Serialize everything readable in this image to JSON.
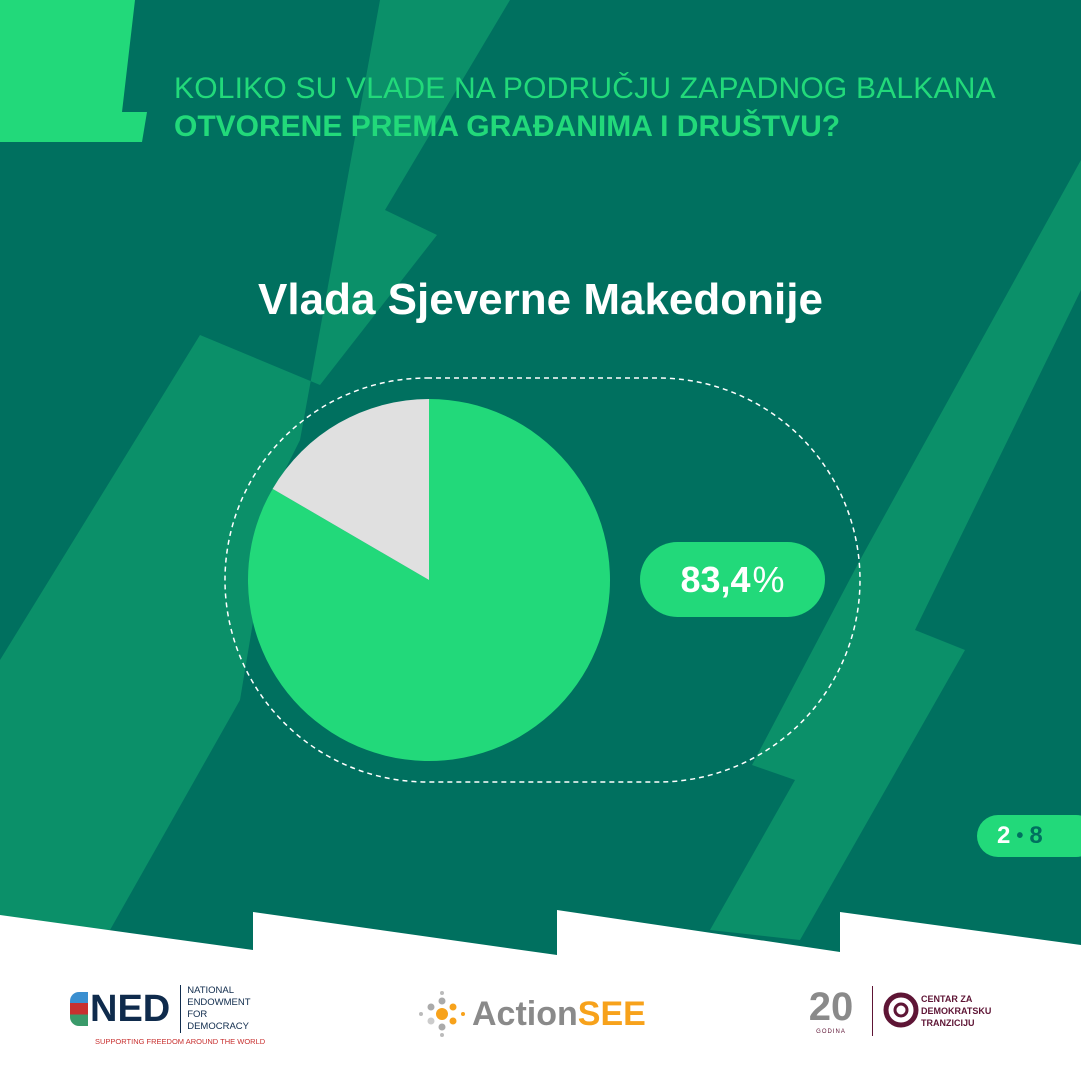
{
  "header": {
    "line1": "KOLIKO SU VLADE NA PODRUČJU ZAPADNOG BALKANA",
    "line2": "OTVORENE PREMA GRAĐANIMA I DRUŠTVU?"
  },
  "chart_data": {
    "type": "pie",
    "title": "Vlada Sjeverne Makedonije",
    "slices": [
      {
        "value": 83.4,
        "color": "#22d97a"
      },
      {
        "value": 16.6,
        "color": "#e0e0e0"
      }
    ],
    "data_label": {
      "number": "83,4",
      "unit": "%"
    }
  },
  "pager": {
    "current": "2",
    "separator": "•",
    "total": "8"
  },
  "logos": {
    "ned": {
      "mark": "NED",
      "name_lines": [
        "NATIONAL",
        "ENDOWMENT",
        "FOR",
        "DEMOCRACY"
      ],
      "tagline": "SUPPORTING FREEDOM AROUND THE WORLD"
    },
    "actionsee": {
      "part1": "Action",
      "part2": "SEE"
    },
    "cdt": {
      "years": "20",
      "years_sub": "GODINA",
      "name_lines": [
        "CENTAR ZA",
        "DEMOKRATSKU",
        "TRANZICIJU"
      ]
    }
  },
  "colors": {
    "background": "#00705f",
    "stripe": "#0b9069",
    "accent": "#22d97a",
    "ned_blue": "#0f2b4c",
    "ned_red": "#c8302f",
    "actionsee_orange": "#f7a21b",
    "actionsee_gray": "#8a8a8a",
    "cdt_maroon": "#5e1535"
  }
}
